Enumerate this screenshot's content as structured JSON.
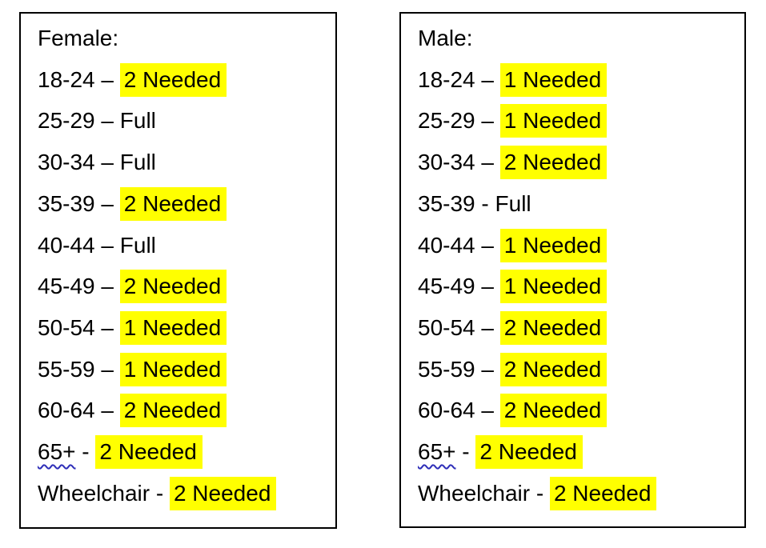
{
  "colors": {
    "text": "#000000",
    "highlight": "#ffff00",
    "panel_border": "#000000",
    "squiggle": "#2e2eb8"
  },
  "panels": [
    {
      "name": "female",
      "title": "Female:",
      "rows": [
        {
          "label": "18-24",
          "sep": " – ",
          "value": "2 Needed",
          "highlight": true,
          "squiggle": false
        },
        {
          "label": "25-29",
          "sep": " – ",
          "value": "Full",
          "highlight": false,
          "squiggle": false
        },
        {
          "label": "30-34",
          "sep": " – ",
          "value": "Full",
          "highlight": false,
          "squiggle": false
        },
        {
          "label": "35-39",
          "sep": " – ",
          "value": "2 Needed",
          "highlight": true,
          "squiggle": false
        },
        {
          "label": "40-44",
          "sep": " – ",
          "value": "Full",
          "highlight": false,
          "squiggle": false
        },
        {
          "label": "45-49",
          "sep": " – ",
          "value": "2 Needed",
          "highlight": true,
          "squiggle": false
        },
        {
          "label": "50-54",
          "sep": " – ",
          "value": "1 Needed",
          "highlight": true,
          "squiggle": false
        },
        {
          "label": "55-59",
          "sep": " – ",
          "value": "1 Needed",
          "highlight": true,
          "squiggle": false
        },
        {
          "label": "60-64",
          "sep": " – ",
          "value": "2 Needed",
          "highlight": true,
          "squiggle": false
        },
        {
          "label": "65+",
          "sep": " - ",
          "value": "2 Needed",
          "highlight": true,
          "squiggle": true
        },
        {
          "label": "Wheelchair",
          "sep": " - ",
          "value": "2 Needed",
          "highlight": true,
          "squiggle": false
        }
      ]
    },
    {
      "name": "male",
      "title": "Male:",
      "rows": [
        {
          "label": "18-24",
          "sep": " – ",
          "value": "1 Needed",
          "highlight": true,
          "squiggle": false
        },
        {
          "label": "25-29",
          "sep": " – ",
          "value": "1 Needed",
          "highlight": true,
          "squiggle": false
        },
        {
          "label": "30-34",
          "sep": " – ",
          "value": "2 Needed",
          "highlight": true,
          "squiggle": false
        },
        {
          "label": "35-39",
          "sep": " - ",
          "value": "Full",
          "highlight": false,
          "squiggle": false
        },
        {
          "label": "40-44",
          "sep": " – ",
          "value": "1 Needed",
          "highlight": true,
          "squiggle": false
        },
        {
          "label": "45-49",
          "sep": " – ",
          "value": "1 Needed",
          "highlight": true,
          "squiggle": false
        },
        {
          "label": "50-54",
          "sep": " – ",
          "value": "2 Needed",
          "highlight": true,
          "squiggle": false
        },
        {
          "label": "55-59",
          "sep": " – ",
          "value": "2 Needed",
          "highlight": true,
          "squiggle": false
        },
        {
          "label": "60-64",
          "sep": " – ",
          "value": "2 Needed",
          "highlight": true,
          "squiggle": false
        },
        {
          "label": "65+",
          "sep": " - ",
          "value": "2 Needed",
          "highlight": true,
          "squiggle": true
        },
        {
          "label": "Wheelchair",
          "sep": " - ",
          "value": "2 Needed",
          "highlight": true,
          "squiggle": false
        }
      ]
    }
  ]
}
